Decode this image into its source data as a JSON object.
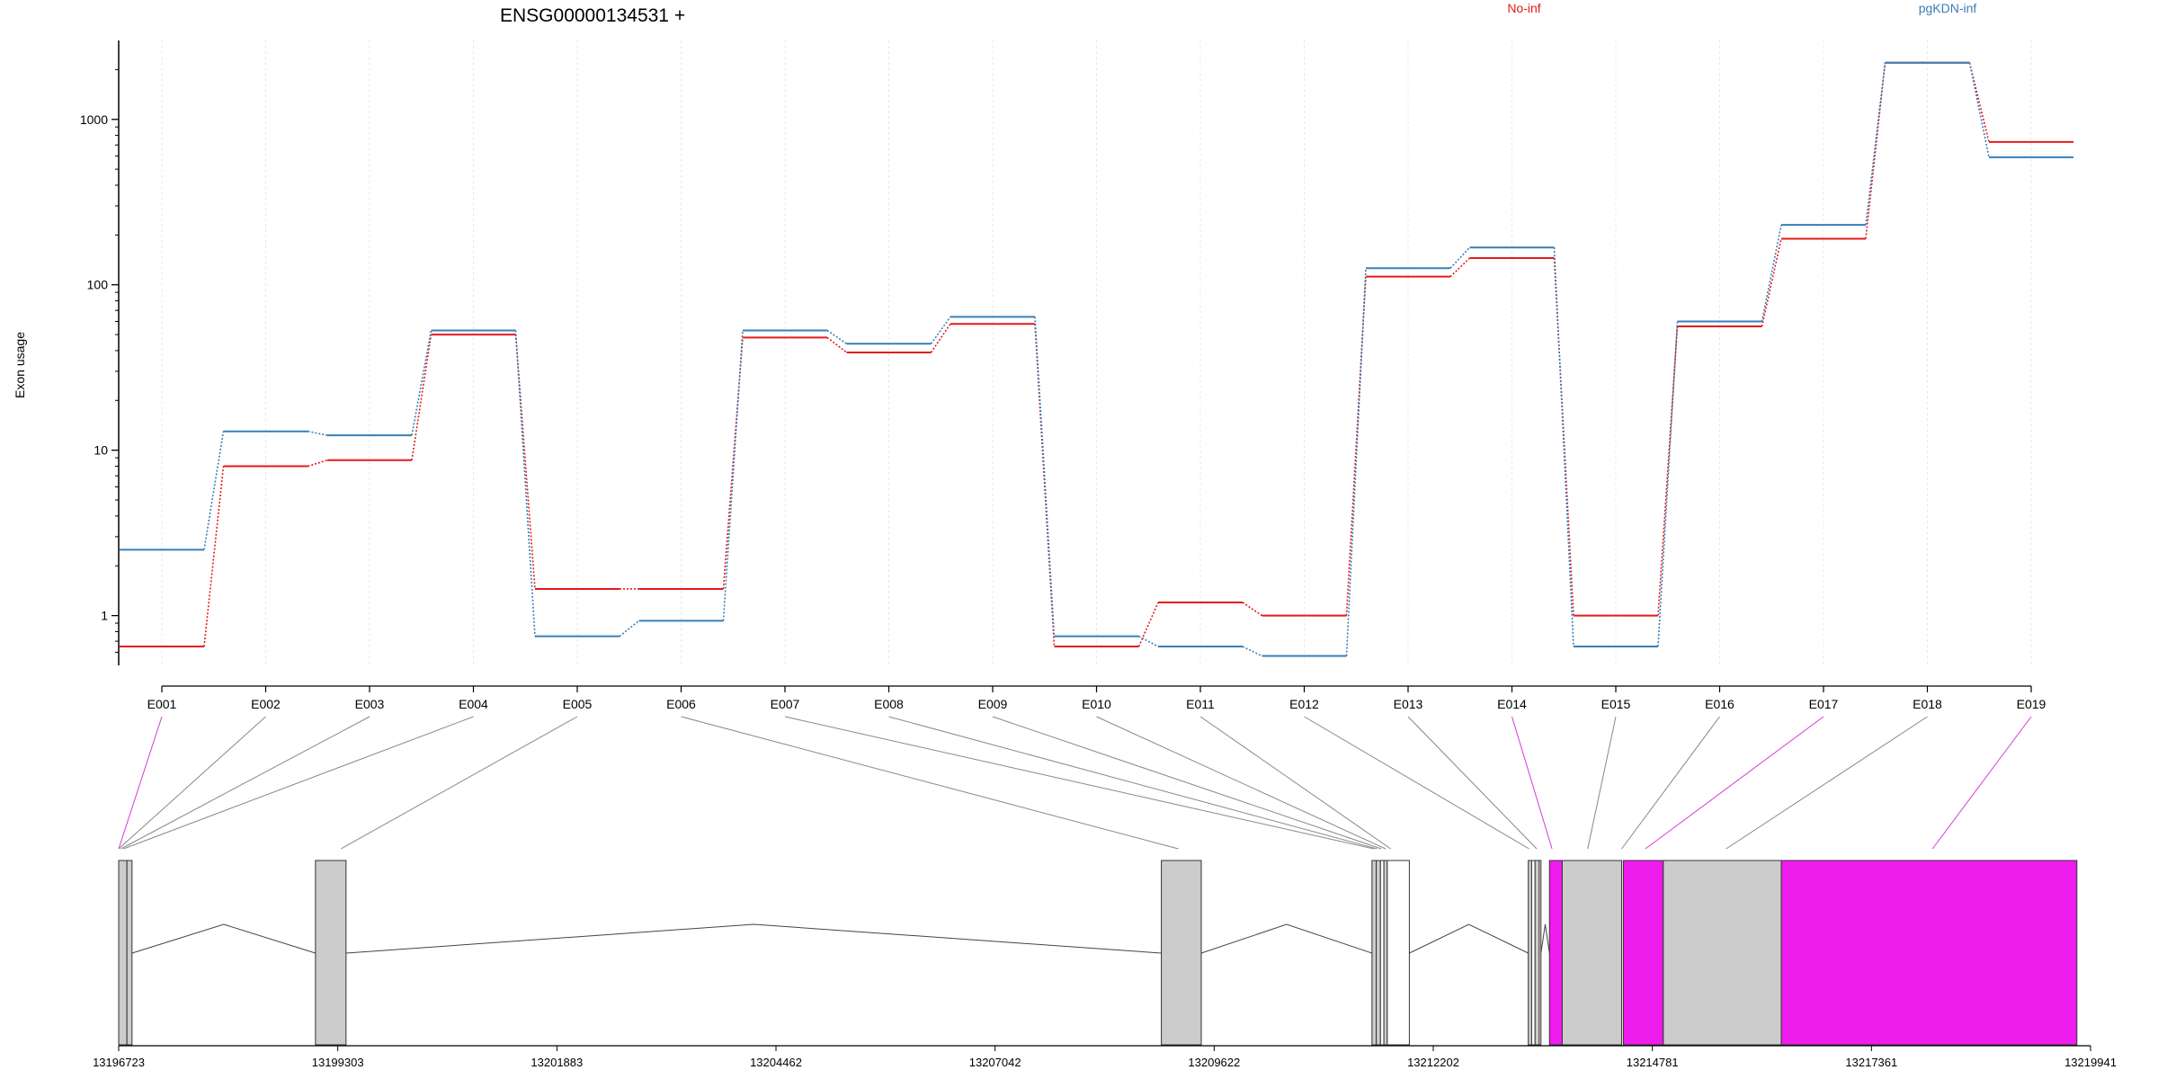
{
  "chart_data": {
    "type": "line",
    "title": "ENSG00000134531 +",
    "ylabel": "Exon usage",
    "xlabel": "",
    "y_scale": "log",
    "ylim": [
      0.5,
      3000
    ],
    "yticks": [
      1,
      10,
      100,
      1000
    ],
    "ytick_labels": [
      "1",
      "10",
      "100",
      "1000"
    ],
    "grid": "vertical",
    "legend_placement": "top",
    "categories": [
      "E001",
      "E002",
      "E003",
      "E004",
      "E005",
      "E006",
      "E007",
      "E008",
      "E009",
      "E010",
      "E011",
      "E012",
      "E013",
      "E014",
      "E015",
      "E016",
      "E017",
      "E018",
      "E019"
    ],
    "series": [
      {
        "name": "No-inf",
        "color": "#e41a1c",
        "values": [
          0.65,
          8,
          8.7,
          50,
          1.45,
          1.45,
          48,
          39,
          58,
          0.65,
          1.2,
          1.0,
          112,
          145,
          1.0,
          56,
          190,
          2200,
          730
        ]
      },
      {
        "name": "pgKDN-inf",
        "color": "#377eb8",
        "values": [
          2.5,
          13,
          12.3,
          53,
          0.75,
          0.93,
          53,
          44,
          64,
          0.75,
          0.65,
          0.57,
          126,
          168,
          0.65,
          60,
          230,
          2200,
          590
        ]
      }
    ],
    "gene_model": {
      "coordinate_labels": [
        "13196723",
        "13199303",
        "13201883",
        "13204462",
        "13207042",
        "13209622",
        "13212202",
        "13214781",
        "13217361",
        "13219941"
      ],
      "coordinate_range": [
        13196723,
        13219941
      ],
      "exon_fill": "#cccccc",
      "highlight_fill": "#ee1cec",
      "exons": [
        {
          "start": 13196723,
          "end": 13196820,
          "fill": "gray"
        },
        {
          "start": 13196820,
          "end": 13196880,
          "fill": "gray"
        },
        {
          "start": 13199040,
          "end": 13199400,
          "fill": "gray"
        },
        {
          "start": 13209000,
          "end": 13209470,
          "fill": "gray"
        },
        {
          "start": 13211480,
          "end": 13211530,
          "fill": "gray"
        },
        {
          "start": 13211530,
          "end": 13211580,
          "fill": "gray"
        },
        {
          "start": 13211580,
          "end": 13211620,
          "fill": "white"
        },
        {
          "start": 13211620,
          "end": 13211660,
          "fill": "gray"
        },
        {
          "start": 13211660,
          "end": 13211920,
          "fill": "white"
        },
        {
          "start": 13213320,
          "end": 13213360,
          "fill": "gray"
        },
        {
          "start": 13213360,
          "end": 13213400,
          "fill": "white"
        },
        {
          "start": 13213400,
          "end": 13213450,
          "fill": "gray"
        },
        {
          "start": 13213450,
          "end": 13213470,
          "fill": "white"
        },
        {
          "start": 13213570,
          "end": 13213720,
          "fill": "highlight"
        },
        {
          "start": 13213720,
          "end": 13214420,
          "fill": "gray"
        },
        {
          "start": 13214440,
          "end": 13214910,
          "fill": "highlight"
        },
        {
          "start": 13214910,
          "end": 13216300,
          "fill": "gray"
        },
        {
          "start": 13216300,
          "end": 13219780,
          "fill": "highlight"
        }
      ],
      "introns": [
        {
          "start": 13196880,
          "end": 13199040
        },
        {
          "start": 13199400,
          "end": 13209000
        },
        {
          "start": 13209470,
          "end": 13211480
        },
        {
          "start": 13211920,
          "end": 13213320
        },
        {
          "start": 13213470,
          "end": 13213570
        }
      ],
      "exon_links": [
        {
          "exon": "E001",
          "to": 13196723,
          "highlight": true
        },
        {
          "exon": "E002",
          "to": 13196723,
          "highlight": false
        },
        {
          "exon": "E003",
          "to": 13196750,
          "highlight": false
        },
        {
          "exon": "E004",
          "to": 13196780,
          "highlight": false
        },
        {
          "exon": "E005",
          "to": 13199340,
          "highlight": false
        },
        {
          "exon": "E006",
          "to": 13209200,
          "highlight": false
        },
        {
          "exon": "E007",
          "to": 13211500,
          "highlight": false
        },
        {
          "exon": "E008",
          "to": 13211540,
          "highlight": false
        },
        {
          "exon": "E009",
          "to": 13211590,
          "highlight": false
        },
        {
          "exon": "E010",
          "to": 13211640,
          "highlight": false
        },
        {
          "exon": "E011",
          "to": 13211700,
          "highlight": false
        },
        {
          "exon": "E012",
          "to": 13213330,
          "highlight": false
        },
        {
          "exon": "E013",
          "to": 13213420,
          "highlight": false
        },
        {
          "exon": "E014",
          "to": 13213600,
          "highlight": true
        },
        {
          "exon": "E015",
          "to": 13214020,
          "highlight": false
        },
        {
          "exon": "E016",
          "to": 13214420,
          "highlight": false
        },
        {
          "exon": "E017",
          "to": 13214700,
          "highlight": true
        },
        {
          "exon": "E018",
          "to": 13215650,
          "highlight": false
        },
        {
          "exon": "E019",
          "to": 13218080,
          "highlight": true
        }
      ]
    }
  }
}
